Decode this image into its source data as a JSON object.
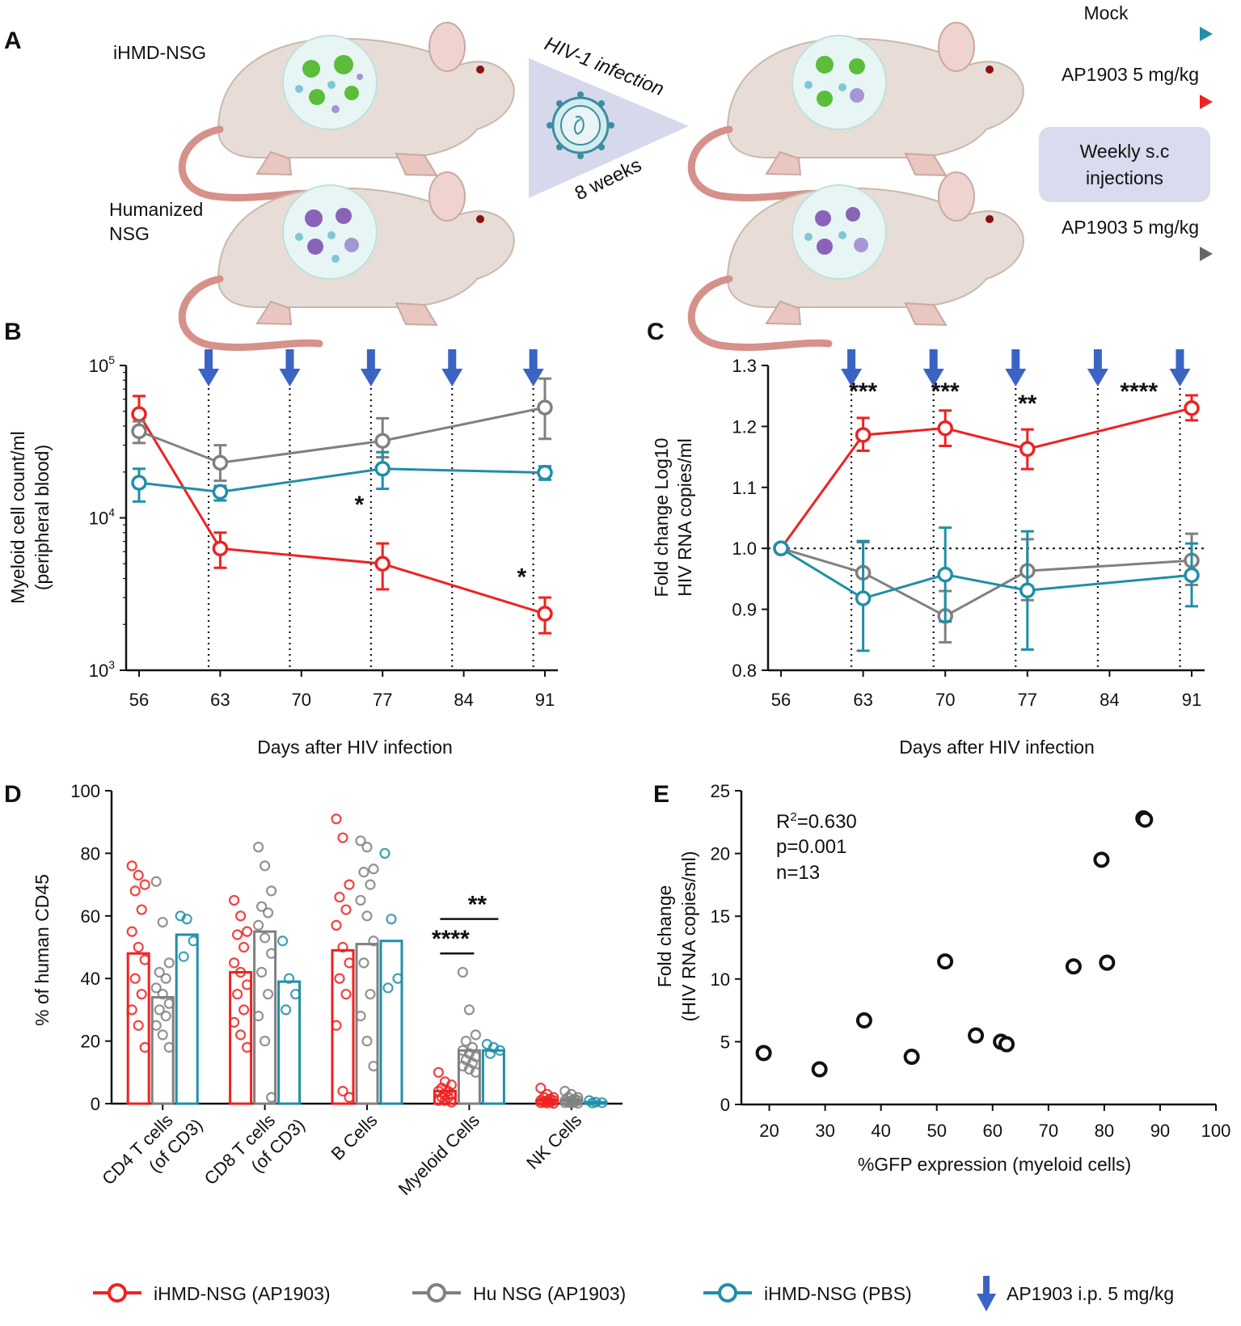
{
  "panels": {
    "a": "A",
    "b": "B",
    "c": "C",
    "d": "D",
    "e": "E"
  },
  "schematic": {
    "group1": "iHMD-NSG",
    "group2_line1": "Humanized",
    "group2_line2": "NSG",
    "infection_label": "HIV-1 infection",
    "duration_label": "8 weeks",
    "mock_label": "Mock",
    "drug_red_label": "AP1903 5 mg/kg",
    "weekly_line1": "Weekly s.c",
    "weekly_line2": "injections",
    "drug_grey_label": "AP1903 5 mg/kg"
  },
  "colors": {
    "red": "#ee2222",
    "grey": "#808080",
    "teal": "#1f8fa8",
    "blue_arrow": "#3a63c4",
    "box": "#d9dbee",
    "triangle": "#d6d8ec"
  },
  "legend": {
    "red": "iHMD-NSG  (AP1903)",
    "grey": "Hu NSG  (AP1903)",
    "teal": "iHMD-NSG  (PBS)",
    "arrow": "AP1903 i.p. 5 mg/kg"
  },
  "chart_data": [
    {
      "panel": "B",
      "type": "line",
      "yscale": "log",
      "ylabel_line1": "Myeloid cell count/ml",
      "ylabel_line2": "(peripheral blood)",
      "xlabel": "Days after HIV infection",
      "x": [
        56,
        63,
        70,
        77,
        84,
        91
      ],
      "xtick_labels": [
        "56",
        "63",
        "70",
        "77",
        "84",
        "91"
      ],
      "ytick_labels": [
        {
          "base": "10",
          "exp": "3"
        },
        {
          "base": "10",
          "exp": "4"
        },
        {
          "base": "10",
          "exp": "5"
        }
      ],
      "ylim": [
        1000,
        100000
      ],
      "dosing_days": [
        62,
        69,
        76,
        83,
        90
      ],
      "series": [
        {
          "name": "iHMD-NSG (AP1903)",
          "color_key": "red",
          "x": [
            56,
            63,
            77,
            91
          ],
          "values": [
            48000,
            6300,
            5000,
            2350
          ],
          "err_low": [
            36000,
            4700,
            3400,
            1750
          ],
          "err_high": [
            63000,
            8000,
            6800,
            3000
          ]
        },
        {
          "name": "Hu NSG (AP1903)",
          "color_key": "grey",
          "x": [
            56,
            63,
            77,
            91
          ],
          "values": [
            37000,
            23000,
            32000,
            53000
          ],
          "err_low": [
            31000,
            17500,
            25000,
            33000
          ],
          "err_high": [
            43000,
            30000,
            45000,
            82000
          ]
        },
        {
          "name": "iHMD-NSG (PBS)",
          "color_key": "teal",
          "x": [
            56,
            63,
            77,
            91
          ],
          "values": [
            17000,
            14800,
            21000,
            19800
          ],
          "err_low": [
            12800,
            13000,
            15500,
            17800
          ],
          "err_high": [
            21000,
            16200,
            27000,
            21800
          ]
        }
      ],
      "annotations": [
        {
          "x": 75,
          "y": 12500,
          "text": "*"
        },
        {
          "x": 89,
          "y": 4200,
          "text": "*"
        }
      ]
    },
    {
      "panel": "C",
      "type": "line",
      "ylabel_line1": "Fold change Log10",
      "ylabel_line2": "HIV RNA copies/ml",
      "xlabel": "Days after HIV infection",
      "x": [
        56,
        63,
        70,
        77,
        84,
        91
      ],
      "xtick_labels": [
        "56",
        "63",
        "70",
        "77",
        "84",
        "91"
      ],
      "ytick_labels": [
        "0.8",
        "0.9",
        "1.0",
        "1.1",
        "1.2",
        "1.3"
      ],
      "ylim": [
        0.8,
        1.3
      ],
      "reference_line": 1.0,
      "dosing_days": [
        62,
        69,
        76,
        83,
        90
      ],
      "series": [
        {
          "name": "iHMD-NSG (AP1903)",
          "color_key": "red",
          "x": [
            56,
            63,
            70,
            77,
            91
          ],
          "values": [
            1.0,
            1.186,
            1.197,
            1.163,
            1.23
          ],
          "err_low": [
            1.0,
            1.16,
            1.168,
            1.13,
            1.21
          ],
          "err_high": [
            1.0,
            1.214,
            1.226,
            1.195,
            1.251
          ]
        },
        {
          "name": "Hu NSG (AP1903)",
          "color_key": "grey",
          "x": [
            56,
            63,
            70,
            77,
            91
          ],
          "values": [
            1.0,
            0.96,
            0.889,
            0.963,
            0.98
          ],
          "err_low": [
            1.0,
            0.915,
            0.846,
            0.915,
            0.94
          ],
          "err_high": [
            1.0,
            1.01,
            0.93,
            1.015,
            1.024
          ]
        },
        {
          "name": "iHMD-NSG (PBS)",
          "color_key": "teal",
          "x": [
            56,
            63,
            70,
            77,
            91
          ],
          "values": [
            1.0,
            0.918,
            0.957,
            0.931,
            0.956
          ],
          "err_low": [
            1.0,
            0.832,
            0.88,
            0.834,
            0.905
          ],
          "err_high": [
            1.0,
            1.012,
            1.034,
            1.028,
            1.008
          ]
        }
      ],
      "annotations": [
        {
          "x": 63,
          "y": 1.26,
          "text": "***"
        },
        {
          "x": 70,
          "y": 1.26,
          "text": "***"
        },
        {
          "x": 77,
          "y": 1.24,
          "text": "**"
        },
        {
          "x": 86.5,
          "y": 1.26,
          "text": "****"
        }
      ]
    },
    {
      "panel": "D",
      "type": "bar",
      "ylabel": "% of human CD45",
      "ylim": [
        0,
        100
      ],
      "ytick_labels": [
        "0",
        "20",
        "40",
        "60",
        "80",
        "100"
      ],
      "categories": [
        {
          "line1": "CD4 T cells",
          "line2": "(of CD3)"
        },
        {
          "line1": "CD8 T cells",
          "line2": "(of CD3)"
        },
        {
          "line1": "B Cells",
          "line2": ""
        },
        {
          "line1": "Myeloid Cells",
          "line2": ""
        },
        {
          "line1": "NK Cells",
          "line2": ""
        }
      ],
      "series": [
        {
          "name": "iHMD-NSG (AP1903)",
          "color_key": "red",
          "values": [
            48,
            42,
            49,
            4,
            1
          ],
          "points": [
            [
              76,
              73,
              70,
              68,
              62,
              55,
              50,
              46,
              40,
              35,
              30,
              25,
              18
            ],
            [
              65,
              60,
              55,
              54,
              50,
              45,
              42,
              38,
              35,
              30,
              26,
              22,
              18
            ],
            [
              91,
              85,
              70,
              66,
              62,
              57,
              50,
              45,
              40,
              35,
              25,
              4,
              2
            ],
            [
              10,
              7,
              6,
              5,
              4,
              4,
              3,
              3,
              2,
              2,
              1,
              1,
              0.5
            ],
            [
              5,
              3,
              2,
              2,
              1.5,
              1,
              1,
              1,
              0.5,
              0.5,
              0.3,
              0.2,
              0.1
            ]
          ]
        },
        {
          "name": "Hu NSG (AP1903)",
          "color_key": "grey",
          "values": [
            34,
            55,
            51,
            17,
            1
          ],
          "points": [
            [
              71,
              58,
              45,
              42,
              40,
              37,
              35,
              32,
              30,
              28,
              25,
              22,
              18
            ],
            [
              82,
              76,
              68,
              63,
              61,
              57,
              53,
              48,
              42,
              35,
              28,
              20,
              2
            ],
            [
              84,
              82,
              75,
              74,
              70,
              65,
              60,
              52,
              45,
              35,
              28,
              20,
              12
            ],
            [
              42,
              30,
              22,
              20,
              18,
              17,
              16,
              15,
              14,
              13,
              12,
              11,
              10
            ],
            [
              4,
              3,
              2,
              2,
              1.5,
              1,
              1,
              1,
              0.5,
              0.5,
              0.3,
              0.2,
              0.1
            ]
          ]
        },
        {
          "name": "iHMD-NSG (PBS)",
          "color_key": "teal",
          "values": [
            54,
            39,
            52,
            17,
            0.5
          ],
          "points": [
            [
              60,
              59,
              52,
              47
            ],
            [
              52,
              40,
              35,
              30
            ],
            [
              80,
              59,
              40,
              37
            ],
            [
              19,
              18,
              17,
              16
            ],
            [
              1,
              0.5,
              0.3,
              0.2
            ]
          ]
        }
      ],
      "annotations": [
        {
          "text": "****",
          "from_series": 0,
          "to_series": 1,
          "category": 3
        },
        {
          "text": "**",
          "from_series": 0,
          "to_series": 2,
          "category": 3
        }
      ]
    },
    {
      "panel": "E",
      "type": "scatter",
      "xlabel": "%GFP expression  (myeloid cells)",
      "ylabel_line1": "Fold change",
      "ylabel_line2": "(HIV RNA copies/ml)",
      "xlim": [
        15,
        100
      ],
      "ylim": [
        0,
        25
      ],
      "xtick_labels": [
        "20",
        "30",
        "40",
        "50",
        "60",
        "70",
        "80",
        "90",
        "100"
      ],
      "ytick_labels": [
        "0",
        "5",
        "10",
        "15",
        "20",
        "25"
      ],
      "stats_r2_prefix": "R",
      "stats_r2_exp": "2",
      "stats_r2_value": "=0.630",
      "stats_p": "p=0.001",
      "stats_n": "n=13",
      "points": [
        [
          19,
          4.1
        ],
        [
          29,
          2.8
        ],
        [
          37,
          6.7
        ],
        [
          45.5,
          3.8
        ],
        [
          51.5,
          11.4
        ],
        [
          57,
          5.5
        ],
        [
          61.5,
          5.0
        ],
        [
          62.5,
          4.8
        ],
        [
          74.5,
          11.0
        ],
        [
          79.5,
          19.5
        ],
        [
          80.5,
          11.3
        ],
        [
          87,
          22.8
        ],
        [
          87.3,
          22.7
        ]
      ]
    }
  ]
}
